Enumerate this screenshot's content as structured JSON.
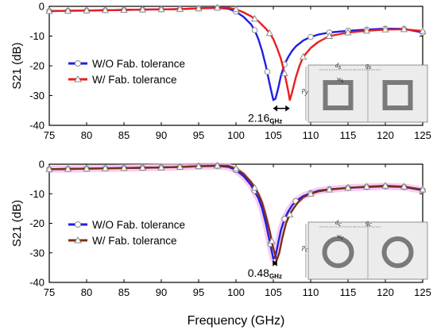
{
  "xlabel": "Frequency (GHz)",
  "charts": [
    {
      "ylabel": "S21 (dB)",
      "xlim": [
        75,
        125
      ],
      "ylim": [
        -40,
        0
      ],
      "xticks": [
        75,
        80,
        85,
        90,
        95,
        100,
        105,
        110,
        115,
        120,
        125
      ],
      "yticks": [
        0,
        -10,
        -20,
        -30,
        -40
      ],
      "annotation": {
        "value": "2.16",
        "unit": "GHz",
        "from": 105.0,
        "to": 107.16,
        "y": -34.3
      },
      "inset": {
        "shape": "square",
        "labels": [
          "d",
          "s",
          "g",
          "s",
          "w",
          "s",
          "p",
          "y"
        ]
      },
      "series": [
        {
          "name": "W/O Fab. tolerance",
          "color": "#1f1fe8",
          "marker": "circle",
          "x": [
            75,
            77.5,
            80,
            82.5,
            85,
            87.5,
            90,
            92.5,
            95,
            97.5,
            99,
            100,
            101,
            102,
            102.5,
            103,
            103.5,
            104,
            104.5,
            105,
            105.3,
            105.7,
            106,
            106.5,
            107,
            107.5,
            108,
            109,
            110,
            111,
            112.5,
            115,
            117.5,
            120,
            122.5,
            125
          ],
          "y": [
            -1.6,
            -1.5,
            -1.4,
            -1.3,
            -1.2,
            -1.1,
            -1.0,
            -0.9,
            -0.7,
            -0.5,
            -0.8,
            -1.8,
            -3.5,
            -6.0,
            -8.0,
            -11.0,
            -15.0,
            -20.0,
            -26.0,
            -31.5,
            -31.0,
            -27.0,
            -23.5,
            -19.5,
            -17.0,
            -15.0,
            -13.5,
            -11.5,
            -10.3,
            -9.5,
            -8.8,
            -8.2,
            -7.8,
            -7.5,
            -7.6,
            -8.8
          ],
          "markers_x": [
            75,
            77.5,
            80,
            82.5,
            85,
            87.5,
            90,
            92.5,
            95,
            97.5,
            100,
            102.5,
            104.2,
            106.5,
            110,
            112.5,
            115,
            117.5,
            120,
            122.5,
            125
          ],
          "markers_y": [
            -1.6,
            -1.5,
            -1.4,
            -1.3,
            -1.2,
            -1.1,
            -1.0,
            -0.9,
            -0.7,
            -0.5,
            -1.8,
            -8.0,
            -22.0,
            -19.5,
            -10.3,
            -8.8,
            -8.2,
            -7.8,
            -7.5,
            -7.6,
            -8.8
          ]
        },
        {
          "name": "W/ Fab. tolerance",
          "color": "#e81f1f",
          "marker": "triangle",
          "x": [
            75,
            77.5,
            80,
            82.5,
            85,
            87.5,
            90,
            92.5,
            95,
            97.5,
            99,
            100,
            101,
            102,
            103,
            104,
            104.5,
            105,
            105.5,
            106,
            106.5,
            107,
            107.2,
            107.5,
            108,
            108.5,
            109,
            110,
            111,
            112.5,
            115,
            117.5,
            120,
            122.5,
            125
          ],
          "y": [
            -1.6,
            -1.5,
            -1.4,
            -1.3,
            -1.2,
            -1.1,
            -1.0,
            -0.9,
            -0.7,
            -0.5,
            -0.5,
            -1.0,
            -2.0,
            -3.3,
            -5.0,
            -7.5,
            -9.0,
            -11.0,
            -14.0,
            -17.5,
            -22.5,
            -28.5,
            -31.5,
            -29.0,
            -24.0,
            -20.0,
            -17.0,
            -14.0,
            -12.0,
            -10.0,
            -8.8,
            -8.2,
            -7.8,
            -7.7,
            -8.3
          ],
          "markers_x": [
            75,
            77.5,
            80,
            82.5,
            85,
            87.5,
            90,
            92.5,
            95,
            97.5,
            100,
            102.5,
            104.5,
            106.5,
            109,
            112.5,
            115,
            117.5,
            120,
            122.5,
            125
          ],
          "markers_y": [
            -1.6,
            -1.5,
            -1.4,
            -1.3,
            -1.2,
            -1.1,
            -1.0,
            -0.9,
            -0.7,
            -0.5,
            -1.0,
            -4.2,
            -9.0,
            -22.5,
            -17.0,
            -10.0,
            -8.8,
            -8.2,
            -7.8,
            -7.7,
            -8.3
          ]
        }
      ]
    },
    {
      "ylabel": "S21 (dB)",
      "xlim": [
        75,
        125
      ],
      "ylim": [
        -40,
        0
      ],
      "xticks": [
        75,
        80,
        85,
        90,
        95,
        100,
        105,
        110,
        115,
        120,
        125
      ],
      "yticks": [
        0,
        -10,
        -20,
        -30,
        -40
      ],
      "annotation": {
        "value": "0.48",
        "unit": "GHz",
        "from": 104.97,
        "to": 105.45,
        "y": -33.5
      },
      "inset": {
        "shape": "ring",
        "labels": [
          "d",
          "c",
          "g",
          "c",
          "w",
          "c",
          "p",
          "c"
        ]
      },
      "series": [
        {
          "name": "W/O Fab. tolerance",
          "color": "#1f1fe8",
          "marker": "circle",
          "x": [
            75,
            77.5,
            80,
            82.5,
            85,
            87.5,
            90,
            92.5,
            95,
            97.5,
            99,
            100,
            101,
            102,
            103,
            103.5,
            104,
            104.5,
            105,
            105.3,
            105.7,
            106,
            106.5,
            107,
            107.5,
            108,
            109,
            110,
            111,
            112.5,
            115,
            117.5,
            120,
            122.5,
            125
          ],
          "y": [
            -1.7,
            -1.6,
            -1.5,
            -1.4,
            -1.3,
            -1.2,
            -1.1,
            -0.9,
            -0.7,
            -0.6,
            -0.9,
            -2.0,
            -4.0,
            -7.0,
            -11.5,
            -15.0,
            -20.0,
            -26.0,
            -32.0,
            -31.0,
            -26.0,
            -22.5,
            -18.5,
            -16.0,
            -14.0,
            -12.5,
            -10.8,
            -9.8,
            -9.0,
            -8.5,
            -8.0,
            -7.7,
            -7.5,
            -7.7,
            -8.8
          ],
          "markers_x": [
            75,
            77.5,
            80,
            82.5,
            85,
            87.5,
            90,
            92.5,
            95,
            97.5,
            100,
            102.5,
            104.6,
            106.5,
            108,
            110,
            112.5,
            115,
            117.5,
            120,
            122.5,
            125
          ],
          "markers_y": [
            -1.7,
            -1.6,
            -1.5,
            -1.4,
            -1.3,
            -1.2,
            -1.1,
            -0.9,
            -0.7,
            -0.6,
            -2.0,
            -9.0,
            -27.0,
            -18.5,
            -12.5,
            -9.8,
            -8.5,
            -8.0,
            -7.7,
            -7.5,
            -7.7,
            -8.8
          ]
        },
        {
          "name": "W/ Fab. tolerance",
          "color": "#7b3012",
          "marker": "triangle",
          "x": [
            75,
            77.5,
            80,
            82.5,
            85,
            87.5,
            90,
            92.5,
            95,
            97.5,
            99,
            100,
            101,
            102,
            103,
            103.5,
            104,
            104.5,
            105,
            105.45,
            105.8,
            106.2,
            106.7,
            107.2,
            107.7,
            108.2,
            109,
            110,
            111,
            112.5,
            115,
            117.5,
            120,
            122.5,
            125
          ],
          "y": [
            -1.7,
            -1.6,
            -1.5,
            -1.4,
            -1.3,
            -1.2,
            -1.1,
            -0.9,
            -0.7,
            -0.5,
            -0.6,
            -1.5,
            -3.2,
            -6.0,
            -10.0,
            -13.0,
            -17.5,
            -22.5,
            -28.5,
            -32.5,
            -30.0,
            -25.0,
            -20.0,
            -17.0,
            -15.0,
            -13.2,
            -11.2,
            -10.0,
            -9.2,
            -8.6,
            -8.0,
            -7.6,
            -7.3,
            -7.6,
            -8.6
          ],
          "markers_x": [
            75,
            77.5,
            80,
            82.5,
            85,
            87.5,
            90,
            92.5,
            95,
            97.5,
            100,
            102.5,
            104.8,
            107.2,
            110,
            112.5,
            115,
            117.5,
            120,
            122.5,
            125
          ],
          "markers_y": [
            -1.7,
            -1.6,
            -1.5,
            -1.4,
            -1.3,
            -1.2,
            -1.1,
            -0.9,
            -0.7,
            -0.5,
            -1.5,
            -8.0,
            -26.0,
            -17.0,
            -10.0,
            -8.6,
            -8.0,
            -7.6,
            -7.3,
            -7.6,
            -8.6
          ]
        }
      ]
    }
  ]
}
